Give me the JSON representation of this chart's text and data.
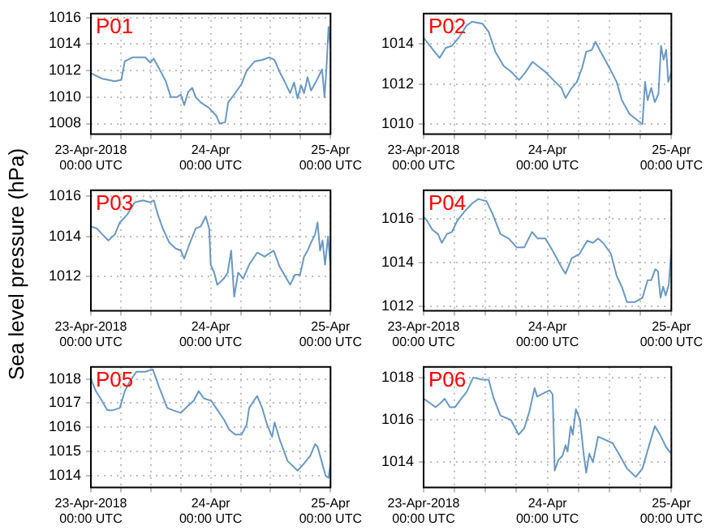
{
  "chart_data": [
    {
      "type": "line",
      "title": "P01",
      "color": "#6a98c2",
      "grid": true,
      "xlim": [
        "2018-04-23T00:00",
        "2018-04-25T00:00"
      ],
      "ylim": [
        1007.2,
        1016.3
      ],
      "yticks": [
        1008,
        1010,
        1012,
        1014,
        1016
      ],
      "xticks": [
        {
          "value": "2018-04-23T00:00",
          "label": "23-Apr-2018\n00:00 UTC"
        },
        {
          "value": "2018-04-23T06:00",
          "label": null
        },
        {
          "value": "2018-04-23T12:00",
          "label": null
        },
        {
          "value": "2018-04-23T18:00",
          "label": null
        },
        {
          "value": "2018-04-24T00:00",
          "label": "24-Apr\n00:00 UTC"
        },
        {
          "value": "2018-04-24T06:00",
          "label": null
        },
        {
          "value": "2018-04-24T12:00",
          "label": null
        },
        {
          "value": "2018-04-24T18:00",
          "label": null
        },
        {
          "value": "2018-04-25T00:00",
          "label": "25-Apr\n00:00 UTC"
        }
      ],
      "x": [
        "2018-04-23T00:00",
        "2018-04-23T02:12",
        "2018-04-23T04:48",
        "2018-04-23T06:06",
        "2018-04-23T06:48",
        "2018-04-23T08:18",
        "2018-04-23T10:54",
        "2018-04-23T11:54",
        "2018-04-23T12:36",
        "2018-04-23T13:36",
        "2018-04-23T15:00",
        "2018-04-23T16:00",
        "2018-04-23T17:18",
        "2018-04-23T18:00",
        "2018-04-23T18:42",
        "2018-04-23T19:30",
        "2018-04-23T20:18",
        "2018-04-23T21:00",
        "2018-04-23T22:00",
        "2018-04-23T23:36",
        "2018-04-24T01:06",
        "2018-04-24T01:48",
        "2018-04-24T02:54",
        "2018-04-24T03:30",
        "2018-04-24T04:42",
        "2018-04-24T06:12",
        "2018-04-24T07:12",
        "2018-04-24T08:48",
        "2018-04-24T10:18",
        "2018-04-24T11:48",
        "2018-04-24T12:48",
        "2018-04-24T13:48",
        "2018-04-24T14:54",
        "2018-04-24T15:54",
        "2018-04-24T16:42",
        "2018-04-24T17:24",
        "2018-04-24T18:06",
        "2018-04-24T18:42",
        "2018-04-24T19:24",
        "2018-04-24T20:06",
        "2018-04-24T21:00",
        "2018-04-24T21:48",
        "2018-04-24T22:18",
        "2018-04-24T22:48",
        "2018-04-24T23:12",
        "2018-04-24T23:36",
        "2018-04-25T00:00"
      ],
      "values": [
        1011.8,
        1011.4,
        1011.2,
        1011.3,
        1012.7,
        1013.0,
        1013.0,
        1012.6,
        1012.9,
        1012.2,
        1011.2,
        1010.0,
        1010.0,
        1010.2,
        1009.4,
        1010.4,
        1010.7,
        1010.0,
        1009.6,
        1009.2,
        1008.6,
        1008.0,
        1008.1,
        1009.6,
        1010.2,
        1011.0,
        1012.0,
        1012.7,
        1012.8,
        1013.0,
        1012.8,
        1011.9,
        1011.1,
        1010.3,
        1011.1,
        1009.9,
        1010.9,
        1010.3,
        1011.5,
        1010.5,
        1011.1,
        1011.7,
        1012.1,
        1010.0,
        1012.3,
        1015.3,
        1013.7
      ]
    },
    {
      "type": "line",
      "title": "P02",
      "color": "#6a98c2",
      "grid": true,
      "xlim": [
        "2018-04-23T00:00",
        "2018-04-25T00:00"
      ],
      "ylim": [
        1009.5,
        1015.5
      ],
      "yticks": [
        1010,
        1012,
        1014
      ],
      "xticks": [
        {
          "value": "2018-04-23T00:00",
          "label": "23-Apr-2018\n00:00 UTC"
        },
        {
          "value": "2018-04-23T06:00",
          "label": null
        },
        {
          "value": "2018-04-23T12:00",
          "label": null
        },
        {
          "value": "2018-04-23T18:00",
          "label": null
        },
        {
          "value": "2018-04-24T00:00",
          "label": "24-Apr\n00:00 UTC"
        },
        {
          "value": "2018-04-24T06:00",
          "label": null
        },
        {
          "value": "2018-04-24T12:00",
          "label": null
        },
        {
          "value": "2018-04-24T18:00",
          "label": null
        },
        {
          "value": "2018-04-25T00:00",
          "label": "25-Apr\n00:00 UTC"
        }
      ],
      "x": [
        "2018-04-23T00:00",
        "2018-04-23T01:12",
        "2018-04-23T03:06",
        "2018-04-23T04:18",
        "2018-04-23T05:30",
        "2018-04-23T06:48",
        "2018-04-23T08:18",
        "2018-04-23T09:24",
        "2018-04-23T11:24",
        "2018-04-23T12:36",
        "2018-04-23T13:54",
        "2018-04-23T15:30",
        "2018-04-23T17:00",
        "2018-04-23T18:30",
        "2018-04-23T19:30",
        "2018-04-23T21:06",
        "2018-04-23T22:06",
        "2018-04-23T23:36",
        "2018-04-24T01:06",
        "2018-04-24T02:42",
        "2018-04-24T03:30",
        "2018-04-24T04:42",
        "2018-04-24T05:42",
        "2018-04-24T06:42",
        "2018-04-24T07:30",
        "2018-04-24T08:36",
        "2018-04-24T09:18",
        "2018-04-24T10:18",
        "2018-04-24T11:48",
        "2018-04-24T13:24",
        "2018-04-24T14:24",
        "2018-04-24T15:54",
        "2018-04-24T17:24",
        "2018-04-24T18:24",
        "2018-04-24T18:54",
        "2018-04-24T19:24",
        "2018-04-24T20:06",
        "2018-04-24T20:48",
        "2018-04-24T21:30",
        "2018-04-24T22:00",
        "2018-04-24T22:30",
        "2018-04-24T23:00",
        "2018-04-24T23:24",
        "2018-04-25T00:00"
      ],
      "values": [
        1014.3,
        1013.9,
        1013.3,
        1013.8,
        1013.9,
        1014.3,
        1014.9,
        1015.1,
        1015.0,
        1014.6,
        1013.6,
        1012.9,
        1012.6,
        1012.2,
        1012.5,
        1013.1,
        1012.9,
        1012.6,
        1012.2,
        1011.8,
        1011.3,
        1011.8,
        1012.1,
        1012.8,
        1013.6,
        1013.7,
        1014.1,
        1013.6,
        1012.9,
        1012.1,
        1011.2,
        1010.5,
        1010.2,
        1010.0,
        1012.1,
        1011.2,
        1011.8,
        1011.1,
        1011.5,
        1013.9,
        1013.2,
        1013.7,
        1012.1,
        1012.6
      ]
    },
    {
      "type": "line",
      "title": "P03",
      "ylabel": "Sea level pressure (hPa)",
      "color": "#6a98c2",
      "grid": true,
      "xlim": [
        "2018-04-23T00:00",
        "2018-04-25T00:00"
      ],
      "ylim": [
        1010.3,
        1016.3
      ],
      "yticks": [
        1012,
        1014,
        1016
      ],
      "xticks": [
        {
          "value": "2018-04-23T00:00",
          "label": "23-Apr-2018\n00:00 UTC"
        },
        {
          "value": "2018-04-23T06:00",
          "label": null
        },
        {
          "value": "2018-04-23T12:00",
          "label": null
        },
        {
          "value": "2018-04-23T18:00",
          "label": null
        },
        {
          "value": "2018-04-24T00:00",
          "label": "24-Apr\n00:00 UTC"
        },
        {
          "value": "2018-04-24T06:00",
          "label": null
        },
        {
          "value": "2018-04-24T12:00",
          "label": null
        },
        {
          "value": "2018-04-24T18:00",
          "label": null
        },
        {
          "value": "2018-04-25T00:00",
          "label": "25-Apr\n00:00 UTC"
        }
      ],
      "x": [
        "2018-04-23T00:00",
        "2018-04-23T01:12",
        "2018-04-23T02:18",
        "2018-04-23T03:30",
        "2018-04-23T04:48",
        "2018-04-23T05:48",
        "2018-04-23T07:18",
        "2018-04-23T08:48",
        "2018-04-23T10:24",
        "2018-04-23T11:54",
        "2018-04-23T12:36",
        "2018-04-23T13:24",
        "2018-04-23T14:24",
        "2018-04-23T15:42",
        "2018-04-23T17:00",
        "2018-04-23T18:00",
        "2018-04-23T18:42",
        "2018-04-23T19:42",
        "2018-04-23T21:00",
        "2018-04-23T22:00",
        "2018-04-23T23:00",
        "2018-04-23T23:42",
        "2018-04-24T00:00",
        "2018-04-24T00:42",
        "2018-04-24T01:18",
        "2018-04-24T02:36",
        "2018-04-24T03:24",
        "2018-04-24T04:06",
        "2018-04-24T04:42",
        "2018-04-24T05:30",
        "2018-04-24T06:30",
        "2018-04-24T07:42",
        "2018-04-24T09:18",
        "2018-04-24T10:48",
        "2018-04-24T12:36",
        "2018-04-24T13:48",
        "2018-04-24T15:54",
        "2018-04-24T16:54",
        "2018-04-24T17:54",
        "2018-04-24T18:42",
        "2018-04-24T19:24",
        "2018-04-24T20:06",
        "2018-04-24T20:54",
        "2018-04-24T21:24",
        "2018-04-24T21:54",
        "2018-04-24T22:24",
        "2018-04-24T22:54",
        "2018-04-24T23:30",
        "2018-04-25T00:00"
      ],
      "values": [
        1014.5,
        1014.4,
        1014.1,
        1013.8,
        1014.1,
        1014.7,
        1015.1,
        1015.7,
        1015.8,
        1015.7,
        1015.8,
        1015.1,
        1014.4,
        1013.7,
        1013.4,
        1013.3,
        1012.9,
        1013.6,
        1014.4,
        1014.5,
        1015.0,
        1014.4,
        1012.6,
        1012.2,
        1011.6,
        1011.9,
        1012.2,
        1013.3,
        1011.0,
        1012.2,
        1011.9,
        1012.6,
        1013.2,
        1013.0,
        1013.3,
        1012.5,
        1011.6,
        1012.1,
        1012.1,
        1013.0,
        1013.3,
        1013.7,
        1014.1,
        1014.7,
        1013.3,
        1013.8,
        1012.6,
        1014.0,
        1012.5
      ]
    },
    {
      "type": "line",
      "title": "P04",
      "color": "#6a98c2",
      "grid": true,
      "xlim": [
        "2018-04-23T00:00",
        "2018-04-25T00:00"
      ],
      "ylim": [
        1011.8,
        1017.3
      ],
      "yticks": [
        1012,
        1014,
        1016
      ],
      "xticks": [
        {
          "value": "2018-04-23T00:00",
          "label": "23-Apr-2018\n00:00 UTC"
        },
        {
          "value": "2018-04-23T06:00",
          "label": null
        },
        {
          "value": "2018-04-23T12:00",
          "label": null
        },
        {
          "value": "2018-04-23T18:00",
          "label": null
        },
        {
          "value": "2018-04-24T00:00",
          "label": "24-Apr\n00:00 UTC"
        },
        {
          "value": "2018-04-24T06:00",
          "label": null
        },
        {
          "value": "2018-04-24T12:00",
          "label": null
        },
        {
          "value": "2018-04-24T18:00",
          "label": null
        },
        {
          "value": "2018-04-25T00:00",
          "label": "25-Apr\n00:00 UTC"
        }
      ],
      "x": [
        "2018-04-23T00:00",
        "2018-04-23T00:42",
        "2018-04-23T01:42",
        "2018-04-23T02:48",
        "2018-04-23T03:30",
        "2018-04-23T04:30",
        "2018-04-23T05:30",
        "2018-04-23T06:30",
        "2018-04-23T07:48",
        "2018-04-23T09:24",
        "2018-04-23T10:36",
        "2018-04-23T12:12",
        "2018-04-23T13:24",
        "2018-04-23T14:54",
        "2018-04-23T16:30",
        "2018-04-23T18:00",
        "2018-04-23T19:30",
        "2018-04-23T21:00",
        "2018-04-23T22:06",
        "2018-04-23T23:36",
        "2018-04-24T01:06",
        "2018-04-24T02:42",
        "2018-04-24T03:30",
        "2018-04-24T04:42",
        "2018-04-24T06:12",
        "2018-04-24T07:42",
        "2018-04-24T08:48",
        "2018-04-24T09:48",
        "2018-04-24T10:48",
        "2018-04-24T12:18",
        "2018-04-24T13:24",
        "2018-04-24T14:24",
        "2018-04-24T15:24",
        "2018-04-24T16:54",
        "2018-04-24T18:24",
        "2018-04-24T19:24",
        "2018-04-24T20:06",
        "2018-04-24T20:54",
        "2018-04-24T21:24",
        "2018-04-24T21:54",
        "2018-04-24T22:24",
        "2018-04-24T22:54",
        "2018-04-24T23:30",
        "2018-04-25T00:00"
      ],
      "values": [
        1016.1,
        1015.9,
        1015.5,
        1015.3,
        1014.9,
        1015.3,
        1015.4,
        1015.9,
        1016.3,
        1016.7,
        1016.9,
        1016.8,
        1016.2,
        1015.3,
        1015.1,
        1014.7,
        1014.7,
        1015.4,
        1015.1,
        1015.1,
        1014.5,
        1013.8,
        1013.5,
        1014.2,
        1014.4,
        1015.0,
        1014.9,
        1015.1,
        1014.9,
        1014.4,
        1013.4,
        1012.9,
        1012.2,
        1012.2,
        1012.4,
        1013.2,
        1013.2,
        1013.7,
        1013.6,
        1012.4,
        1012.9,
        1012.5,
        1013.0,
        1014.6
      ]
    },
    {
      "type": "line",
      "title": "P05",
      "color": "#6a98c2",
      "grid": true,
      "xlim": [
        "2018-04-23T00:00",
        "2018-04-25T00:00"
      ],
      "ylim": [
        1013.5,
        1018.5
      ],
      "yticks": [
        1014,
        1015,
        1016,
        1017,
        1018
      ],
      "xticks": [
        {
          "value": "2018-04-23T00:00",
          "label": "23-Apr-2018\n00:00 UTC"
        },
        {
          "value": "2018-04-23T06:00",
          "label": null
        },
        {
          "value": "2018-04-23T12:00",
          "label": null
        },
        {
          "value": "2018-04-23T18:00",
          "label": null
        },
        {
          "value": "2018-04-24T00:00",
          "label": "24-Apr\n00:00 UTC"
        },
        {
          "value": "2018-04-24T06:00",
          "label": null
        },
        {
          "value": "2018-04-24T12:00",
          "label": null
        },
        {
          "value": "2018-04-24T18:00",
          "label": null
        },
        {
          "value": "2018-04-25T00:00",
          "label": "25-Apr\n00:00 UTC"
        }
      ],
      "x": [
        "2018-04-23T00:00",
        "2018-04-23T01:00",
        "2018-04-23T02:12",
        "2018-04-23T03:18",
        "2018-04-23T04:18",
        "2018-04-23T05:48",
        "2018-04-23T06:48",
        "2018-04-23T07:48",
        "2018-04-23T09:06",
        "2018-04-23T10:54",
        "2018-04-23T12:24",
        "2018-04-23T13:36",
        "2018-04-23T15:18",
        "2018-04-23T16:30",
        "2018-04-23T18:00",
        "2018-04-23T19:30",
        "2018-04-23T20:36",
        "2018-04-23T21:36",
        "2018-04-23T22:36",
        "2018-04-24T00:06",
        "2018-04-24T01:24",
        "2018-04-24T02:42",
        "2018-04-24T03:42",
        "2018-04-24T04:54",
        "2018-04-24T06:12",
        "2018-04-24T07:12",
        "2018-04-24T07:42",
        "2018-04-24T09:18",
        "2018-04-24T10:18",
        "2018-04-24T11:18",
        "2018-04-24T12:18",
        "2018-04-24T12:48",
        "2018-04-24T13:48",
        "2018-04-24T15:24",
        "2018-04-24T17:24",
        "2018-04-24T18:42",
        "2018-04-24T19:54",
        "2018-04-24T20:54",
        "2018-04-24T21:24",
        "2018-04-24T22:12",
        "2018-04-24T23:00",
        "2018-04-24T23:36",
        "2018-04-25T00:00"
      ],
      "values": [
        1018.0,
        1017.5,
        1017.1,
        1016.7,
        1016.7,
        1016.8,
        1017.5,
        1017.9,
        1018.3,
        1018.3,
        1018.4,
        1017.7,
        1016.8,
        1016.7,
        1016.6,
        1016.9,
        1017.1,
        1017.5,
        1017.2,
        1017.1,
        1016.7,
        1016.3,
        1015.9,
        1015.7,
        1015.7,
        1016.1,
        1016.8,
        1017.3,
        1016.8,
        1016.1,
        1015.6,
        1016.2,
        1015.5,
        1014.6,
        1014.2,
        1014.5,
        1014.8,
        1015.3,
        1015.2,
        1014.6,
        1014.0,
        1013.9,
        1014.5
      ]
    },
    {
      "type": "line",
      "title": "P06",
      "color": "#6a98c2",
      "grid": true,
      "xlim": [
        "2018-04-23T00:00",
        "2018-04-25T00:00"
      ],
      "ylim": [
        1012.8,
        1018.5
      ],
      "yticks": [
        1014,
        1016,
        1018
      ],
      "xticks": [
        {
          "value": "2018-04-23T00:00",
          "label": "23-Apr-2018\n00:00 UTC"
        },
        {
          "value": "2018-04-23T06:00",
          "label": null
        },
        {
          "value": "2018-04-23T12:00",
          "label": null
        },
        {
          "value": "2018-04-23T18:00",
          "label": null
        },
        {
          "value": "2018-04-24T00:00",
          "label": "24-Apr\n00:00 UTC"
        },
        {
          "value": "2018-04-24T06:00",
          "label": null
        },
        {
          "value": "2018-04-24T12:00",
          "label": null
        },
        {
          "value": "2018-04-24T18:00",
          "label": null
        },
        {
          "value": "2018-04-25T00:00",
          "label": "25-Apr\n00:00 UTC"
        }
      ],
      "x": [
        "2018-04-23T00:00",
        "2018-04-23T01:12",
        "2018-04-23T02:18",
        "2018-04-23T03:18",
        "2018-04-23T04:06",
        "2018-04-23T05:06",
        "2018-04-23T06:06",
        "2018-04-23T07:18",
        "2018-04-23T08:18",
        "2018-04-23T09:36",
        "2018-04-23T11:24",
        "2018-04-23T12:36",
        "2018-04-23T13:36",
        "2018-04-23T14:54",
        "2018-04-23T15:54",
        "2018-04-23T16:54",
        "2018-04-23T18:24",
        "2018-04-23T19:30",
        "2018-04-23T20:30",
        "2018-04-23T21:30",
        "2018-04-23T22:00",
        "2018-04-23T23:36",
        "2018-04-24T00:24",
        "2018-04-24T01:00",
        "2018-04-24T01:24",
        "2018-04-24T02:06",
        "2018-04-24T02:54",
        "2018-04-24T03:30",
        "2018-04-24T03:54",
        "2018-04-24T04:30",
        "2018-04-24T04:54",
        "2018-04-24T05:30",
        "2018-04-24T06:18",
        "2018-04-24T07:00",
        "2018-04-24T07:30",
        "2018-04-24T08:06",
        "2018-04-24T08:48",
        "2018-04-24T09:48",
        "2018-04-24T10:48",
        "2018-04-24T12:36",
        "2018-04-24T13:48",
        "2018-04-24T15:24",
        "2018-04-24T17:06",
        "2018-04-24T18:24",
        "2018-04-24T19:42",
        "2018-04-24T20:48",
        "2018-04-24T21:48",
        "2018-04-24T23:00",
        "2018-04-25T00:00"
      ],
      "values": [
        1017.0,
        1016.8,
        1016.6,
        1016.8,
        1017.0,
        1016.6,
        1016.6,
        1017.0,
        1017.3,
        1018.0,
        1017.9,
        1017.9,
        1017.0,
        1016.2,
        1016.1,
        1016.0,
        1015.3,
        1015.6,
        1016.4,
        1017.5,
        1017.1,
        1017.3,
        1017.4,
        1017.2,
        1013.6,
        1014.1,
        1014.3,
        1014.8,
        1014.5,
        1015.7,
        1015.3,
        1016.5,
        1016.0,
        1014.4,
        1013.5,
        1014.4,
        1014.0,
        1015.2,
        1015.1,
        1014.9,
        1014.4,
        1013.7,
        1013.3,
        1013.7,
        1014.8,
        1015.7,
        1015.3,
        1014.7,
        1014.4
      ]
    }
  ]
}
